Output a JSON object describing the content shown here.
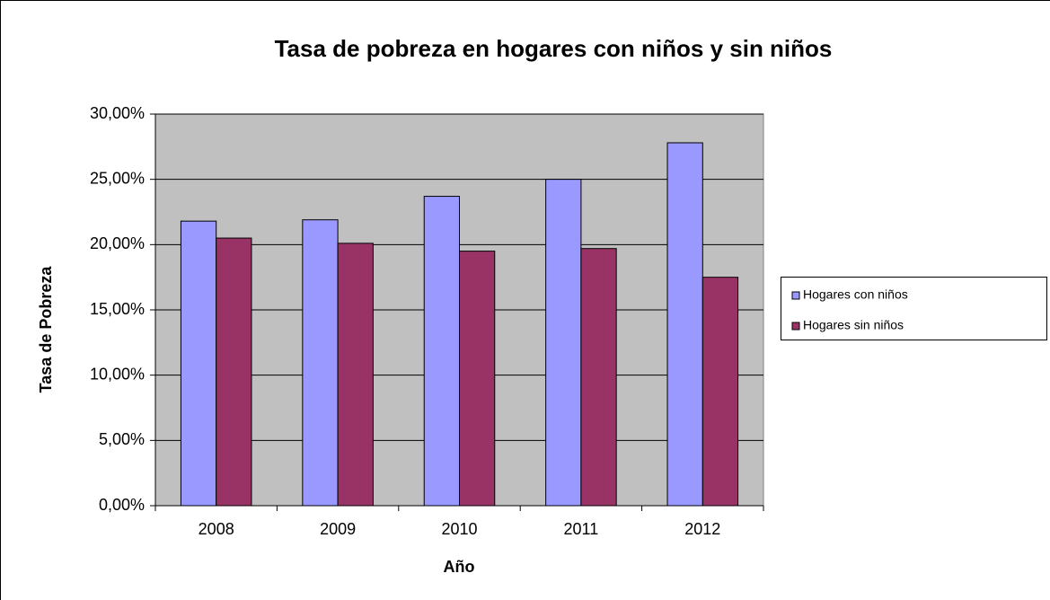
{
  "chart_data": {
    "type": "bar",
    "title": "Tasa de pobreza en hogares con niños y sin niños",
    "x_label": "Año",
    "y_label": "Tasa de Pobreza",
    "categories": [
      "2008",
      "2009",
      "2010",
      "2011",
      "2012"
    ],
    "series": [
      {
        "name": "Hogares con niños",
        "color": "#9999ff",
        "values": [
          21.8,
          21.9,
          23.7,
          25.0,
          27.8
        ]
      },
      {
        "name": "Hogares sin niños",
        "color": "#993366",
        "values": [
          20.5,
          20.1,
          19.5,
          19.7,
          17.5
        ]
      }
    ],
    "ylim": [
      0,
      30
    ],
    "yticks": [
      {
        "value": 0,
        "label": "0,00%"
      },
      {
        "value": 5,
        "label": "5,00%"
      },
      {
        "value": 10,
        "label": "10,00%"
      },
      {
        "value": 15,
        "label": "15,00%"
      },
      {
        "value": 20,
        "label": "20,00%"
      },
      {
        "value": 25,
        "label": "25,00%"
      },
      {
        "value": 30,
        "label": "30,00%"
      }
    ],
    "grid": true,
    "legend": "right"
  }
}
